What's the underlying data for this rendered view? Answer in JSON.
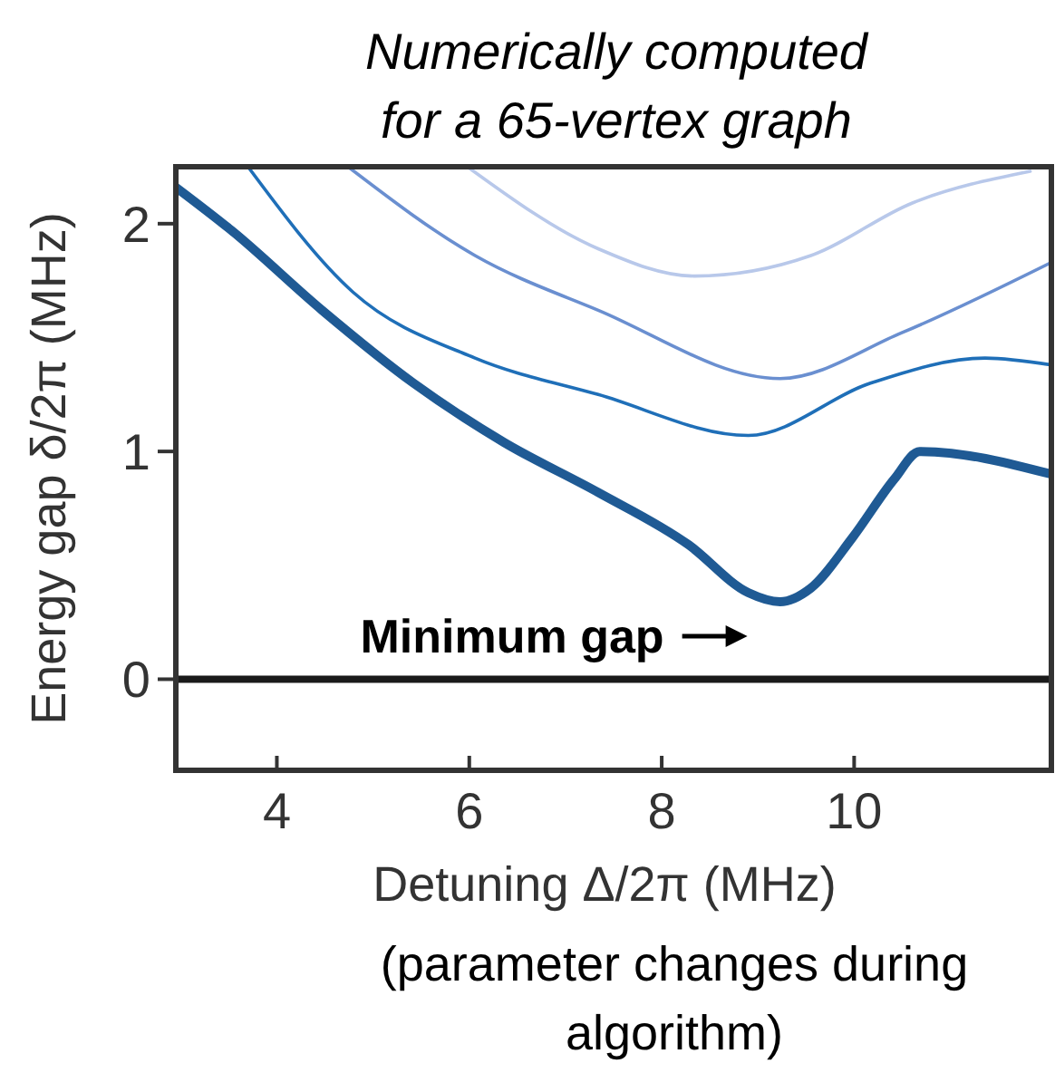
{
  "chart_data": {
    "type": "line",
    "title": "Numerically computed for a 65-vertex graph",
    "xlabel": "Detuning Δ/2π (MHz)",
    "ylabel": "Energy gap δ/2π (MHz)",
    "xlim": [
      2.95,
      12.05
    ],
    "ylim": [
      -0.4,
      2.25
    ],
    "xticks": [
      4,
      6,
      8,
      10
    ],
    "yticks": [
      0,
      1,
      2
    ],
    "grid": false,
    "line_style": "solid",
    "series": [
      {
        "color": "#1f5a94",
        "x": [
          2.95,
          3.53,
          4.47,
          5.42,
          6.36,
          7.34,
          8.28,
          8.9,
          9.23,
          9.55,
          9.98,
          10.42,
          10.68,
          12.05
        ],
        "values": [
          2.16,
          1.97,
          1.62,
          1.3,
          1.04,
          0.82,
          0.59,
          0.38,
          0.34,
          0.4,
          0.62,
          0.88,
          1.0,
          0.9
        ]
      },
      {
        "color": "#1f6fb8",
        "x": [
          3.7,
          4.79,
          6.06,
          7.34,
          8.9,
          10.17,
          11.36,
          12.05
        ],
        "values": [
          2.25,
          1.7,
          1.41,
          1.25,
          1.07,
          1.3,
          1.41,
          1.38
        ]
      },
      {
        "color": "#6a8fd0",
        "x": [
          4.74,
          6.06,
          7.34,
          9.23,
          10.49,
          12.05
        ],
        "values": [
          2.25,
          1.86,
          1.62,
          1.32,
          1.52,
          1.83
        ]
      },
      {
        "color": "#b8c8ea",
        "x": [
          5.98,
          7.34,
          8.34,
          9.55,
          10.6,
          11.83
        ],
        "values": [
          2.25,
          1.89,
          1.77,
          1.86,
          2.09,
          2.23
        ]
      }
    ],
    "ref_lines": [
      {
        "axis": "y",
        "value": 0,
        "color": "#1a1a1a"
      }
    ],
    "annotations": [
      {
        "text": "Minimum gap",
        "x": 9.23,
        "y": 0.34
      },
      "(parameter changes during algorithm)"
    ]
  }
}
